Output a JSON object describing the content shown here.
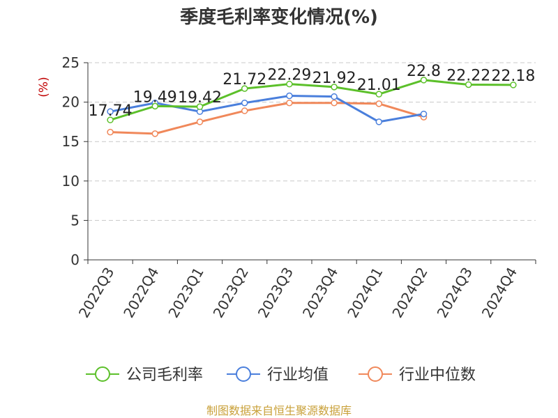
{
  "chart_data": {
    "type": "line",
    "title": "季度毛利率变化情况(%)",
    "ylabel": "(%)",
    "xlabel": "",
    "ylim": [
      0,
      25
    ],
    "yticks": [
      0,
      5,
      10,
      15,
      20,
      25
    ],
    "grid": true,
    "legend_position": "bottom",
    "categories": [
      "2022Q3",
      "2022Q4",
      "2023Q1",
      "2023Q2",
      "2023Q3",
      "2023Q4",
      "2024Q1",
      "2024Q2",
      "2024Q3",
      "2024Q4"
    ],
    "series": [
      {
        "name": "公司毛利率",
        "color": "#5cc02a",
        "values": [
          17.74,
          19.49,
          19.42,
          21.72,
          22.29,
          21.92,
          21.01,
          22.8,
          22.22,
          22.18
        ],
        "data_labels": [
          "17.74",
          "19.49",
          "19.42",
          "21.72",
          "22.29",
          "21.92",
          "21.01",
          "22.8",
          "22.22",
          "22.18"
        ]
      },
      {
        "name": "行业均值",
        "color": "#4a7fdc",
        "values": [
          18.8,
          19.9,
          18.8,
          19.9,
          20.8,
          20.7,
          17.5,
          18.5,
          null,
          null
        ]
      },
      {
        "name": "行业中位数",
        "color": "#f0885a",
        "values": [
          16.2,
          16.0,
          17.5,
          18.9,
          19.9,
          19.9,
          19.8,
          18.1,
          null,
          null
        ]
      }
    ]
  },
  "source_text": "制图数据来自恒生聚源数据库"
}
